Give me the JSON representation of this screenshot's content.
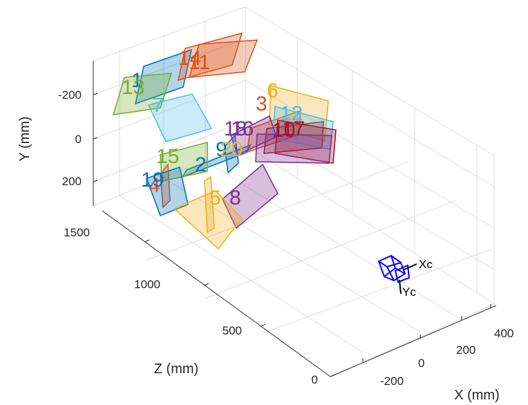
{
  "chart_data": {
    "type": "scatter",
    "title": "",
    "xlabel": "X (mm)",
    "ylabel": "Y (mm)",
    "zlabel": "Z (mm)",
    "x_ticks": [
      "-200",
      "0",
      "200",
      "400"
    ],
    "y_ticks": [
      "-200",
      "0",
      "200"
    ],
    "z_ticks": [
      "0",
      "500",
      "1000",
      "1500"
    ],
    "xlim": [
      -300,
      450
    ],
    "ylim": [
      -300,
      300
    ],
    "zlim": [
      0,
      1700
    ],
    "grid": true,
    "camera_axis_labels": [
      "Xc",
      "Yc"
    ],
    "boards": [
      {
        "label": "1",
        "color": "#0072BD"
      },
      {
        "label": "2",
        "color": "#0072BD"
      },
      {
        "label": "3",
        "color": "#D95319"
      },
      {
        "label": "4",
        "color": "#D95319"
      },
      {
        "label": "5",
        "color": "#EDB120"
      },
      {
        "label": "6",
        "color": "#EDB120"
      },
      {
        "label": "7",
        "color": "#4DBEEE"
      },
      {
        "label": "8",
        "color": "#7E2F8E"
      },
      {
        "label": "9",
        "color": "#0072BD"
      },
      {
        "label": "10",
        "color": "#A2142F"
      },
      {
        "label": "11",
        "color": "#D95319"
      },
      {
        "label": "12",
        "color": "#4DBEEE"
      },
      {
        "label": "13",
        "color": "#77AC30"
      },
      {
        "label": "14",
        "color": "#D95319"
      },
      {
        "label": "15",
        "color": "#77AC30"
      },
      {
        "label": "16",
        "color": "#7E2F8E"
      },
      {
        "label": "17",
        "color": "#A2142F"
      },
      {
        "label": "18",
        "color": "#7E2F8E"
      },
      {
        "label": "19",
        "color": "#0072BD"
      },
      {
        "label": "20",
        "color": "#EDB120"
      }
    ]
  }
}
